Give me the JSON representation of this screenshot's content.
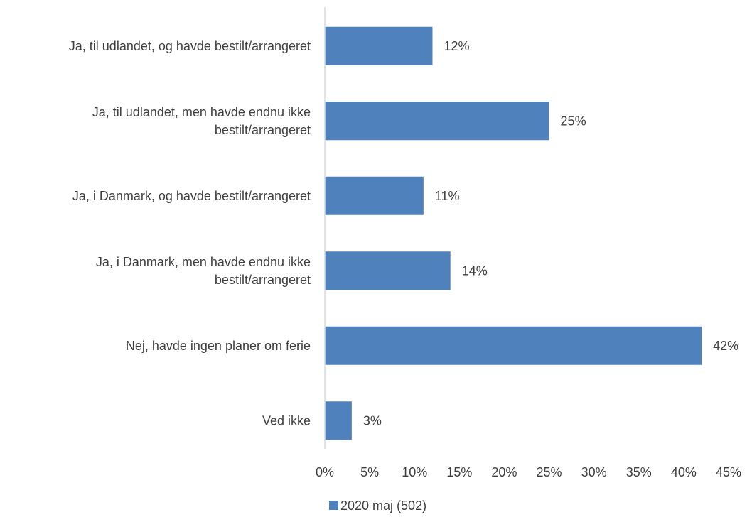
{
  "chart_data": {
    "type": "bar",
    "orientation": "horizontal",
    "categories": [
      "Ja, til udlandet, og havde bestilt/arrangeret",
      "Ja, til udlandet, men havde endnu ikke bestilt/arrangeret",
      "Ja, i Danmark, og havde bestilt/arrangeret",
      "Ja, i Danmark, men havde endnu ikke bestilt/arrangeret",
      "Nej, havde ingen planer om ferie",
      "Ved ikke"
    ],
    "category_lines": [
      [
        "Ja, til udlandet, og havde bestilt/arrangeret"
      ],
      [
        "Ja, til udlandet, men havde endnu ikke",
        "bestilt/arrangeret"
      ],
      [
        "Ja, i Danmark, og havde bestilt/arrangeret"
      ],
      [
        "Ja, i Danmark, men havde endnu ikke",
        "bestilt/arrangeret"
      ],
      [
        "Nej, havde ingen planer om ferie"
      ],
      [
        "Ved ikke"
      ]
    ],
    "series": [
      {
        "name": "2020 maj (502)",
        "values": [
          12,
          25,
          11,
          14,
          42,
          3
        ],
        "labels": [
          "12%",
          "25%",
          "11%",
          "14%",
          "42%",
          "3%"
        ],
        "color": "#4f81bd"
      }
    ],
    "xlim": [
      0,
      45
    ],
    "xticks": [
      0,
      5,
      10,
      15,
      20,
      25,
      30,
      35,
      40,
      45
    ],
    "xtick_labels": [
      "0%",
      "5%",
      "10%",
      "15%",
      "20%",
      "25%",
      "30%",
      "35%",
      "40%",
      "45%"
    ],
    "title": "",
    "xlabel": "",
    "ylabel": "",
    "grid": false,
    "legend_position": "bottom",
    "axis_color": "#d9d9d9",
    "text_color": "#404040"
  }
}
